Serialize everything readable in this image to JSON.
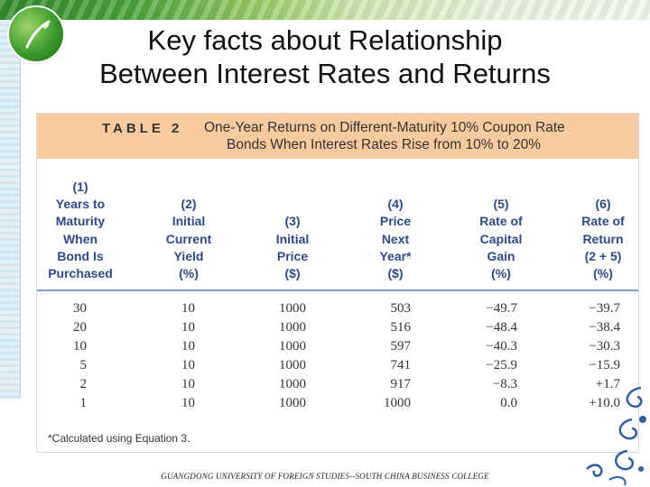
{
  "slide": {
    "title_line1": "Key facts about Relationship",
    "title_line2": "Between Interest Rates and Returns",
    "footer": "GUANGDONG UNIVERSITY OF FOREIGN STUDIES--SOUTH CHINA BUSINESS COLLEGE"
  },
  "table": {
    "label": "TABLE 2",
    "title_line1": "One-Year Returns on Different-Maturity 10% Coupon Rate",
    "title_line2": "Bonds When Interest Rates Rise from 10% to 20%",
    "headers": [
      [
        "(1)",
        "Years to",
        "Maturity",
        "When",
        "Bond Is",
        "Purchased"
      ],
      [
        "(2)",
        "Initial",
        "Current",
        "Yield",
        "(%)"
      ],
      [
        "(3)",
        "Initial",
        "Price",
        "($)"
      ],
      [
        "(4)",
        "Price",
        "Next",
        "Year*",
        "($)"
      ],
      [
        "(5)",
        "Rate of",
        "Capital",
        "Gain",
        "(%)"
      ],
      [
        "(6)",
        "Rate of",
        "Return",
        "(2 + 5)",
        "(%)"
      ]
    ],
    "rows": [
      [
        "30",
        "10",
        "1000",
        "503",
        "−49.7",
        "−39.7"
      ],
      [
        "20",
        "10",
        "1000",
        "516",
        "−48.4",
        "−38.4"
      ],
      [
        "10",
        "10",
        "1000",
        "597",
        "−40.3",
        "−30.3"
      ],
      [
        "5",
        "10",
        "1000",
        "741",
        "−25.9",
        "−15.9"
      ],
      [
        "2",
        "10",
        "1000",
        "917",
        "−8.3",
        "+1.7"
      ],
      [
        "1",
        "10",
        "1000",
        "1000",
        "0.0",
        "+10.0"
      ]
    ],
    "footnote": "*Calculated using Equation 3."
  },
  "colors": {
    "header_band": "#f9c9a0",
    "header_text": "#2d4a8a",
    "rule": "#7aa0d0"
  }
}
